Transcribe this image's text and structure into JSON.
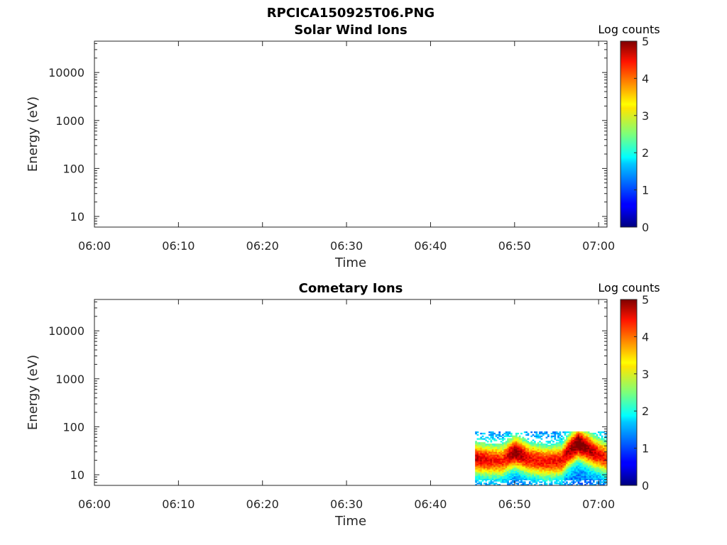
{
  "figure": {
    "filename_title": "RPCICA150925T06.PNG"
  },
  "chart_data": [
    {
      "type": "heatmap",
      "title": "Solar Wind Ions",
      "xlabel": "Time",
      "ylabel": "Energy (eV)",
      "x_ticks": [
        "06:00",
        "06:10",
        "06:20",
        "06:30",
        "06:40",
        "06:50",
        "07:00"
      ],
      "xlim_minutes": [
        0,
        61
      ],
      "y_scale": "log",
      "y_ticks": [
        10,
        100,
        1000,
        10000
      ],
      "y_tick_labels": [
        "10",
        "100",
        "1000",
        "10000"
      ],
      "ylim": [
        6,
        45000
      ],
      "colorbar": {
        "label": "Log counts",
        "ticks": [
          "0",
          "1",
          "2",
          "3",
          "4",
          "5"
        ],
        "range": [
          0,
          5
        ],
        "colormap": "jet"
      },
      "data": []
    },
    {
      "type": "heatmap",
      "title": "Cometary Ions",
      "xlabel": "Time",
      "ylabel": "Energy (eV)",
      "x_ticks": [
        "06:00",
        "06:10",
        "06:20",
        "06:30",
        "06:40",
        "06:50",
        "07:00"
      ],
      "xlim_minutes": [
        0,
        61
      ],
      "y_scale": "log",
      "y_ticks": [
        10,
        100,
        1000,
        10000
      ],
      "y_tick_labels": [
        "10",
        "100",
        "1000",
        "10000"
      ],
      "ylim": [
        6,
        45000
      ],
      "colorbar": {
        "label": "Log counts",
        "ticks": [
          "0",
          "1",
          "2",
          "3",
          "4",
          "5"
        ],
        "range": [
          0,
          5
        ],
        "colormap": "jet"
      },
      "data_region": {
        "t_start_minutes": 45.3,
        "t_end_minutes": 61,
        "e_min_eV": 6,
        "e_max_eV": 80
      },
      "band_profile": [
        {
          "t": 45.3,
          "peak_eV": 22,
          "peak": 3.4
        },
        {
          "t": 47.0,
          "peak_eV": 20,
          "peak": 3.2
        },
        {
          "t": 48.5,
          "peak_eV": 20,
          "peak": 3.0
        },
        {
          "t": 50.0,
          "peak_eV": 30,
          "peak": 3.9
        },
        {
          "t": 51.5,
          "peak_eV": 22,
          "peak": 3.2
        },
        {
          "t": 53.5,
          "peak_eV": 19,
          "peak": 3.1
        },
        {
          "t": 55.5,
          "peak_eV": 20,
          "peak": 3.2
        },
        {
          "t": 57.5,
          "peak_eV": 45,
          "peak": 4.1
        },
        {
          "t": 59.5,
          "peak_eV": 28,
          "peak": 3.4
        },
        {
          "t": 61.0,
          "peak_eV": 22,
          "peak": 3.0
        }
      ]
    }
  ]
}
